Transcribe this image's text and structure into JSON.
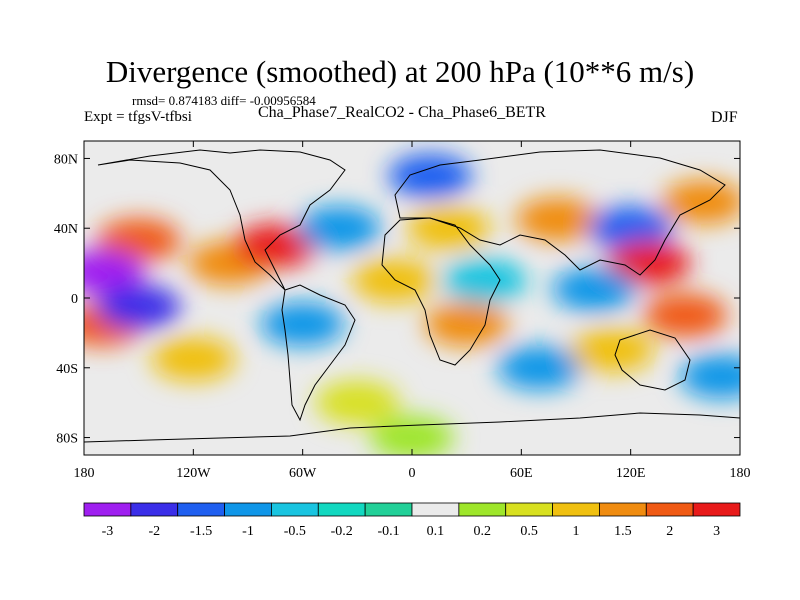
{
  "chart_data": {
    "type": "heatmap",
    "title": "Divergence (smoothed) at 200 hPa (10**6 m/s)",
    "rmsd_label": "rmsd= 0.874183 diff= -0.00956584",
    "experiment_label": "Expt = tfgsV-tfbsi",
    "comparison_label": "Cha_Phase7_RealCO2 - Cha_Phase6_BETR",
    "season": "DJF",
    "x_ticks": [
      {
        "value": -180,
        "label": "180"
      },
      {
        "value": -120,
        "label": "120W"
      },
      {
        "value": -60,
        "label": "60W"
      },
      {
        "value": 0,
        "label": "0"
      },
      {
        "value": 60,
        "label": "60E"
      },
      {
        "value": 120,
        "label": "120E"
      },
      {
        "value": 180,
        "label": "180"
      }
    ],
    "y_ticks": [
      {
        "value": 80,
        "label": "80N"
      },
      {
        "value": 40,
        "label": "40N"
      },
      {
        "value": 0,
        "label": "0"
      },
      {
        "value": -40,
        "label": "40S"
      },
      {
        "value": -80,
        "label": "80S"
      }
    ],
    "xlim": [
      -180,
      180
    ],
    "ylim": [
      -90,
      90
    ],
    "colorbar": {
      "levels": [
        "-3",
        "-2",
        "-1.5",
        "-1",
        "-0.5",
        "-0.2",
        "-0.1",
        "0.1",
        "0.2",
        "0.5",
        "1",
        "1.5",
        "2",
        "3"
      ],
      "colors": [
        "#9f1ff0",
        "#3b2ee8",
        "#1f5ff0",
        "#0f96e8",
        "#19c4e0",
        "#12d8c0",
        "#22d098",
        "#ebebeb",
        "#9ee62a",
        "#d8e020",
        "#f0c010",
        "#f08c10",
        "#f05a14",
        "#e81a1a"
      ]
    },
    "anomaly_blobs": [
      {
        "lon": -150,
        "lat": 33,
        "value": 2
      },
      {
        "lon": -170,
        "lat": 15,
        "value": -3
      },
      {
        "lon": -100,
        "lat": 20,
        "value": 1.5
      },
      {
        "lon": -75,
        "lat": 30,
        "value": 3
      },
      {
        "lon": -40,
        "lat": 40,
        "value": -1
      },
      {
        "lon": 20,
        "lat": 40,
        "value": 1
      },
      {
        "lon": 10,
        "lat": 70,
        "value": -1.5
      },
      {
        "lon": 80,
        "lat": 45,
        "value": 1.5
      },
      {
        "lon": 120,
        "lat": 40,
        "value": -1.5
      },
      {
        "lon": 130,
        "lat": 20,
        "value": 3
      },
      {
        "lon": 160,
        "lat": 55,
        "value": 1.5
      },
      {
        "lon": 150,
        "lat": -10,
        "value": 2
      },
      {
        "lon": -170,
        "lat": -15,
        "value": 2
      },
      {
        "lon": -150,
        "lat": -5,
        "value": -2
      },
      {
        "lon": -120,
        "lat": -35,
        "value": 1
      },
      {
        "lon": -60,
        "lat": -15,
        "value": -1
      },
      {
        "lon": 30,
        "lat": -15,
        "value": 1.5
      },
      {
        "lon": 70,
        "lat": -40,
        "value": -1
      },
      {
        "lon": 110,
        "lat": -30,
        "value": 1
      },
      {
        "lon": 170,
        "lat": -45,
        "value": -1
      },
      {
        "lon": -30,
        "lat": -60,
        "value": 0.5
      },
      {
        "lon": 0,
        "lat": -80,
        "value": 0.2
      },
      {
        "lon": 40,
        "lat": 10,
        "value": -0.5
      },
      {
        "lon": -10,
        "lat": 10,
        "value": 1
      },
      {
        "lon": 100,
        "lat": 5,
        "value": -1
      }
    ]
  }
}
